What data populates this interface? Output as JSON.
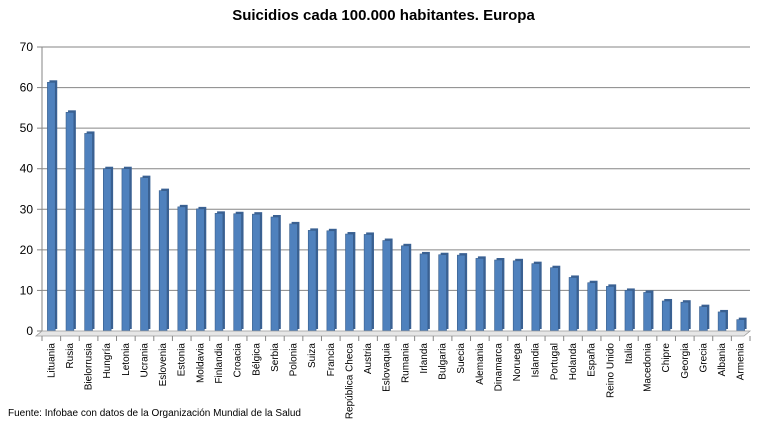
{
  "chart_data": {
    "type": "bar",
    "title": "Suicidios cada 100.000 habitantes. Europa",
    "categories": [
      "Lituania",
      "Rusia",
      "Bielorrusia",
      "Hungría",
      "Letonia",
      "Ucrania",
      "Eslovenia",
      "Estonia",
      "Moldavia",
      "Finlandia",
      "Croacia",
      "Bélgica",
      "Serbia",
      "Polonia",
      "Suiza",
      "Francia",
      "República Checa",
      "Austria",
      "Eslovaquia",
      "Rumania",
      "Irlanda",
      "Bulgaria",
      "Suecia",
      "Alemania",
      "Dinamarca",
      "Noruega",
      "Islandia",
      "Portugal",
      "Holanda",
      "España",
      "Reino Unido",
      "Italia",
      "Macedonia",
      "Chipre",
      "Georgia",
      "Grecia",
      "Albania",
      "Armenia"
    ],
    "values": [
      61.3,
      53.9,
      48.7,
      40.0,
      40.0,
      37.8,
      34.6,
      30.6,
      30.1,
      29.0,
      28.9,
      28.8,
      28.1,
      26.4,
      24.8,
      24.7,
      23.9,
      23.8,
      22.3,
      21.0,
      19.0,
      18.8,
      18.7,
      17.9,
      17.5,
      17.3,
      16.6,
      15.6,
      13.2,
      11.9,
      11.0,
      10.0,
      9.5,
      7.4,
      7.1,
      6.0,
      4.7,
      2.8
    ],
    "xlabel": "",
    "ylabel": "",
    "ylim": [
      0,
      70
    ],
    "yticks": [
      0,
      10,
      20,
      30,
      40,
      50,
      60,
      70
    ],
    "grid": true,
    "legend": "none",
    "bar_color": "#4f81bd",
    "bar_edge_color": "#385d8a"
  },
  "source": "Fuente: Infobae con datos de la Organización Mundial de la Salud"
}
